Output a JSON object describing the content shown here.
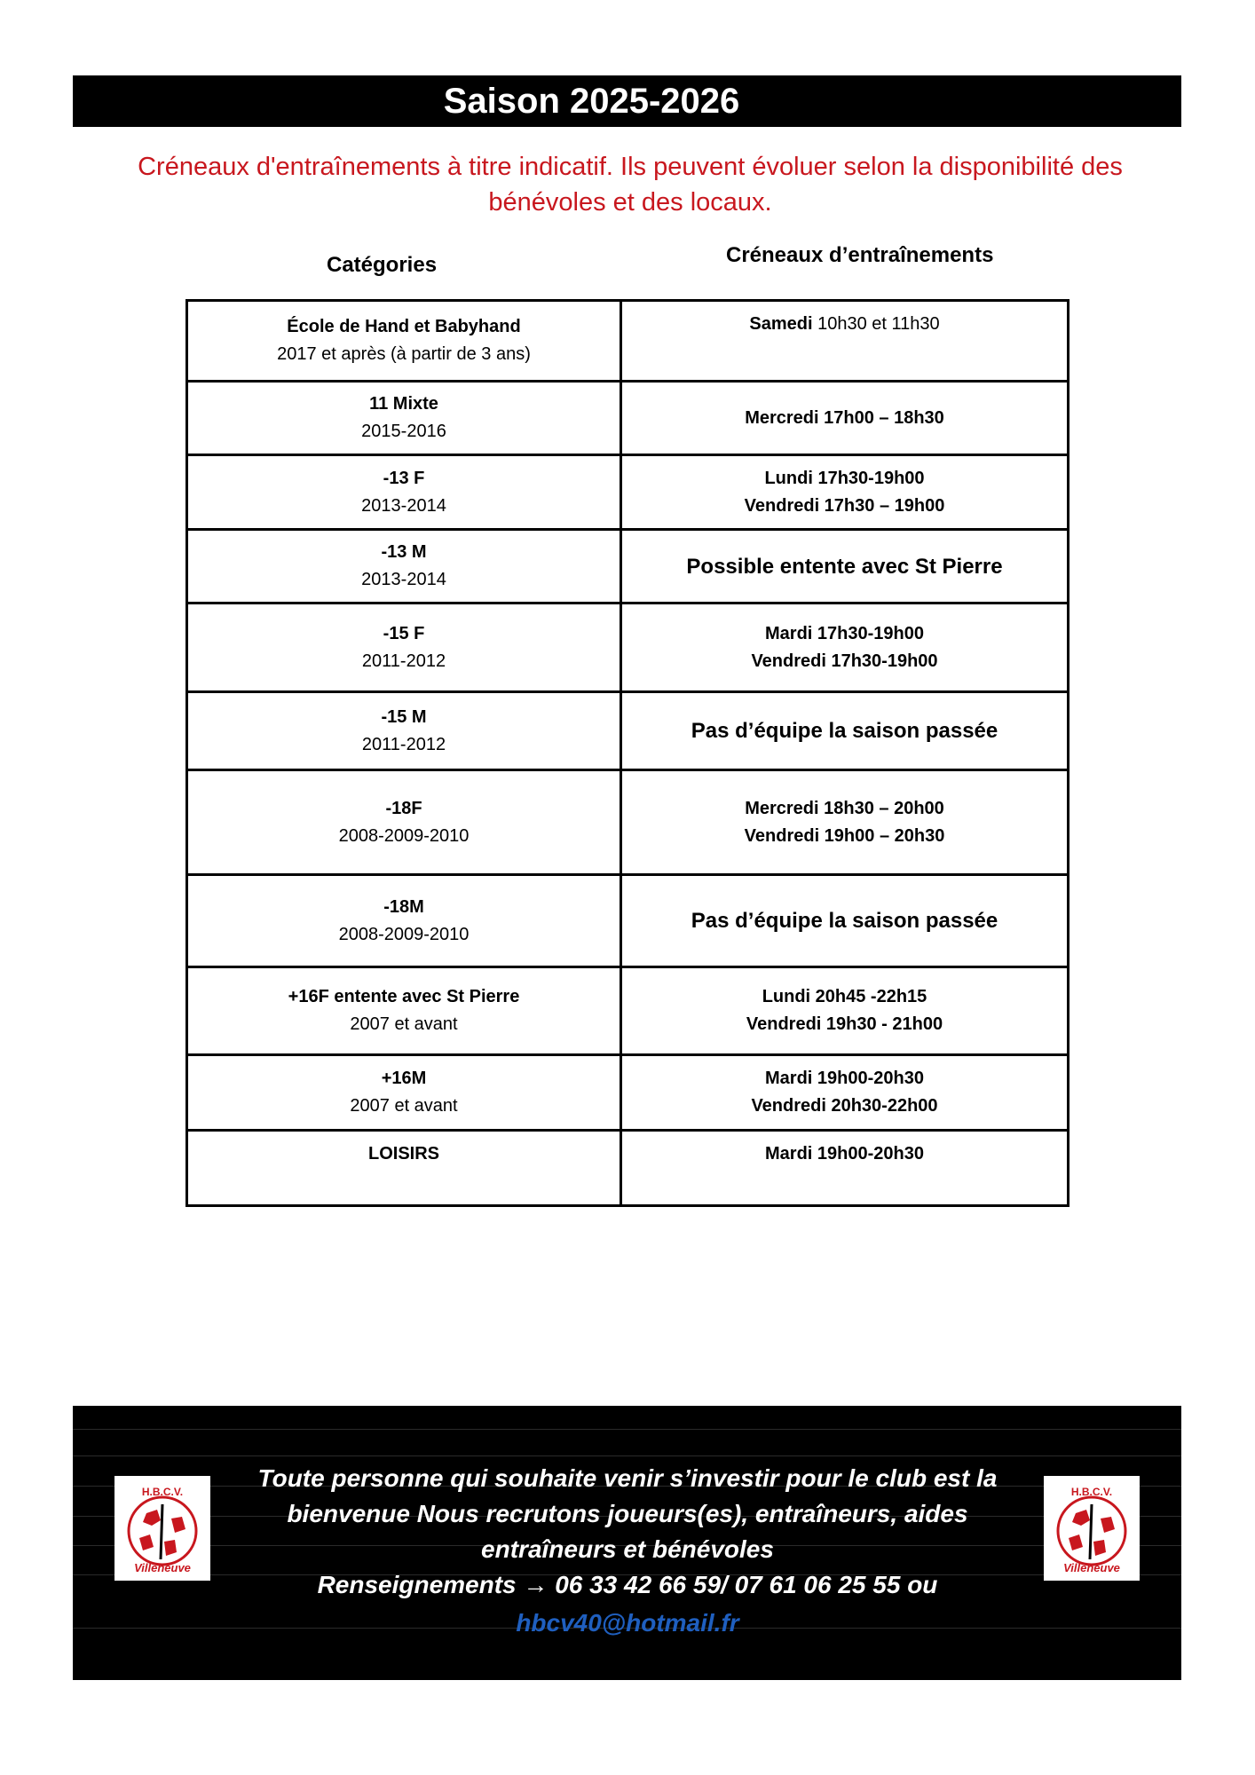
{
  "title": "Saison 2025-2026",
  "notice": "Créneaux d'entraînements à titre indicatif. Ils peuvent évoluer selon la disponibilité des bénévoles et des locaux.",
  "headers": {
    "categories": "Catégories",
    "slots": "Créneaux d’entraînements"
  },
  "rows": [
    {
      "cat": "École de Hand et Babyhand",
      "years": "2017 et après (à partir de 3 ans)",
      "slot1_bold": "Samedi",
      "slot1_rest": " 10h30 et 11h30",
      "slot2": ""
    },
    {
      "cat": "11 Mixte",
      "years": "2015-2016",
      "slot1": "Mercredi 17h00 – 18h30",
      "slot2": ""
    },
    {
      "cat": "-13 F",
      "years": "2013-2014",
      "slot1": "Lundi 17h30-19h00",
      "slot2": "Vendredi 17h30 – 19h00"
    },
    {
      "cat": "-13 M",
      "years": "2013-2014",
      "slot1": "Possible entente avec St Pierre",
      "slot2": ""
    },
    {
      "cat": "-15 F",
      "years": "2011-2012",
      "slot1": "Mardi 17h30-19h00",
      "slot2": "Vendredi 17h30-19h00"
    },
    {
      "cat": "-15 M",
      "years": "2011-2012",
      "slot1": "Pas d’équipe la saison passée",
      "slot2": ""
    },
    {
      "cat": "-18F",
      "years": "2008-2009-2010",
      "slot1": "Mercredi 18h30 – 20h00",
      "slot2": "Vendredi 19h00 – 20h30"
    },
    {
      "cat": "-18M",
      "years": "2008-2009-2010",
      "slot1": "Pas d’équipe la saison passée",
      "slot2": ""
    },
    {
      "cat": "+16F entente avec St Pierre",
      "years": "2007 et avant",
      "slot1": "Lundi 20h45 -22h15",
      "slot2": "Vendredi 19h30 - 21h00"
    },
    {
      "cat": "+16M",
      "years": "2007 et avant",
      "slot1": "Mardi 19h00-20h30",
      "slot2": "Vendredi 20h30-22h00"
    },
    {
      "cat": "LOISIRS",
      "years": "",
      "slot1": "Mardi 19h00-20h30",
      "slot2": ""
    }
  ],
  "footer": {
    "line1": "Toute personne qui souhaite venir s’investir pour le club est la bienvenue Nous recrutons joueurs(es), entraîneurs, aides entraîneurs et bénévoles",
    "line2": "Renseignements → 06 33 42 66 59/ 07 61 06 25 55 ou",
    "email": "hbcv40@hotmail.fr",
    "logo_text_top": "H.B.C.V.",
    "logo_text_bottom": "Villeneuve",
    "accent": "#c8171e"
  }
}
